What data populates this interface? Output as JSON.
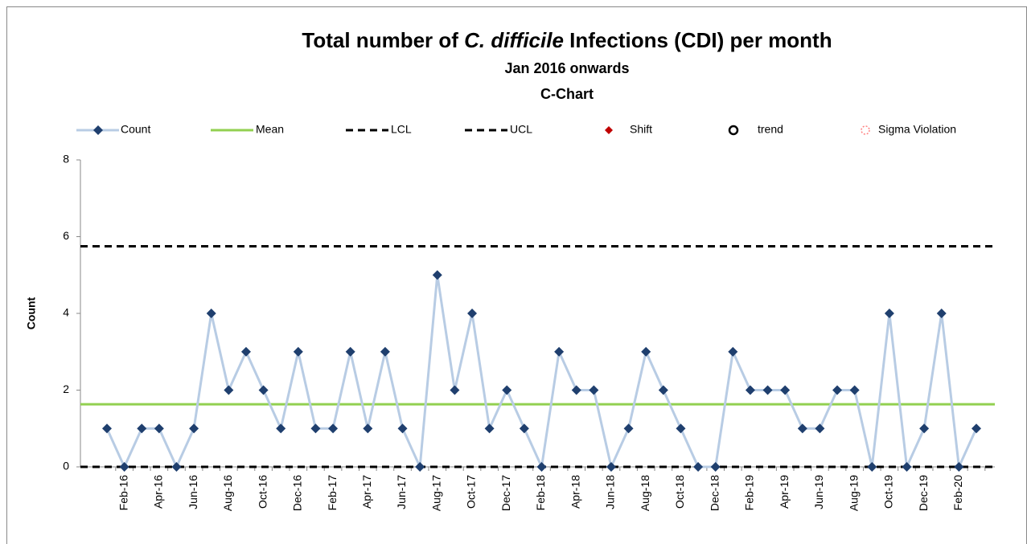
{
  "chart_data": {
    "type": "line",
    "title_parts": [
      "Total number of ",
      "C. difficile",
      " Infections (CDI) per month"
    ],
    "subtitle": "Jan 2016 onwards",
    "subtitle2": "C-Chart",
    "y_label": "Count",
    "categories": [
      null,
      "Feb-16",
      null,
      "Apr-16",
      null,
      "Jun-16",
      null,
      "Aug-16",
      null,
      "Oct-16",
      null,
      "Dec-16",
      null,
      "Feb-17",
      null,
      "Apr-17",
      null,
      "Jun-17",
      null,
      "Aug-17",
      null,
      "Oct-17",
      null,
      "Dec-17",
      null,
      "Feb-18",
      null,
      "Apr-18",
      null,
      "Jun-18",
      null,
      "Aug-18",
      null,
      "Oct-18",
      null,
      "Dec-18",
      null,
      "Feb-19",
      null,
      "Apr-19",
      null,
      "Jun-19",
      null,
      "Aug-19",
      null,
      "Oct-19",
      null,
      "Dec-19",
      null,
      "Feb-20",
      null
    ],
    "series": [
      {
        "name": "Count",
        "color": "#b8cce4",
        "marker_color": "#1f3f6e",
        "values": [
          1,
          0,
          1,
          1,
          0,
          1,
          4,
          2,
          3,
          2,
          1,
          3,
          1,
          1,
          3,
          1,
          3,
          1,
          0,
          5,
          2,
          4,
          1,
          2,
          1,
          0,
          3,
          2,
          2,
          0,
          1,
          3,
          2,
          1,
          0,
          0,
          3,
          2,
          2,
          2,
          1,
          1,
          2,
          2,
          0,
          4,
          0,
          1,
          4,
          0,
          1
        ]
      }
    ],
    "reference_lines": [
      {
        "name": "Mean",
        "color": "#92d050",
        "value": 1.63,
        "dash": false
      },
      {
        "name": "LCL",
        "color": "#000000",
        "value": 0,
        "dash": true
      },
      {
        "name": "UCL",
        "color": "#000000",
        "value": 5.75,
        "dash": true
      }
    ],
    "legend_only": [
      {
        "name": "Shift",
        "color": "#c00000"
      },
      {
        "name": "trend",
        "color": "#000000"
      },
      {
        "name": "Sigma Violation",
        "color": "#ff8080"
      }
    ],
    "ylim": [
      0,
      8
    ],
    "yticks": [
      0,
      2,
      4,
      6,
      8
    ]
  }
}
